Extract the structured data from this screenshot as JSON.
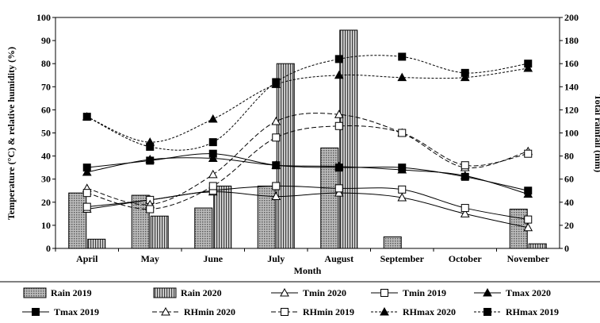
{
  "chart_data": {
    "type": "bar+line",
    "xlabel": "Month",
    "ylabel_left": "Temperature (°C) & relative humidity (%)",
    "ylabel_right": "Total rainfall (mm)",
    "ylim_left": [
      0,
      100
    ],
    "ylim_right": [
      0,
      200
    ],
    "yticks_left": [
      0,
      10,
      20,
      30,
      40,
      50,
      60,
      70,
      80,
      90,
      100
    ],
    "yticks_right": [
      0,
      20,
      40,
      60,
      80,
      100,
      120,
      140,
      160,
      180,
      200
    ],
    "categories": [
      "April",
      "May",
      "June",
      "July",
      "August",
      "September",
      "October",
      "November"
    ],
    "bars": [
      {
        "name": "Rain 2019",
        "axis": "right",
        "pattern": "dots",
        "values": [
          48,
          46,
          35,
          54,
          87,
          10,
          0,
          34
        ]
      },
      {
        "name": "Rain 2020",
        "axis": "right",
        "pattern": "vlines",
        "values": [
          8,
          28,
          54,
          160,
          189,
          0,
          0,
          4
        ]
      }
    ],
    "lines": [
      {
        "name": "Tmin 2020",
        "axis": "left",
        "dash": "solid",
        "marker": "triangle-open",
        "values": [
          17,
          21,
          24.5,
          22.5,
          24,
          22,
          15,
          9
        ]
      },
      {
        "name": "Tmin 2019",
        "axis": "left",
        "dash": "solid",
        "marker": "square-open",
        "values": [
          18,
          21,
          25,
          27,
          26,
          25.5,
          17.5,
          12.5
        ]
      },
      {
        "name": "Tmax 2020",
        "axis": "left",
        "dash": "solid",
        "marker": "triangle-filled",
        "values": [
          33,
          38.5,
          39,
          36,
          35.5,
          34,
          31.5,
          23.5
        ]
      },
      {
        "name": "Tmax 2019",
        "axis": "left",
        "dash": "solid",
        "marker": "square-filled",
        "values": [
          35,
          38,
          41,
          36,
          35,
          35,
          31,
          25
        ]
      },
      {
        "name": "RHmin 2020",
        "axis": "left",
        "dash": "longdash",
        "marker": "triangle-open",
        "values": [
          26,
          19,
          32,
          55,
          58,
          50,
          35,
          42
        ]
      },
      {
        "name": "RHmin 2019",
        "axis": "left",
        "dash": "longdash",
        "marker": "square-open",
        "values": [
          24,
          17,
          27,
          48,
          53,
          50,
          36,
          41
        ]
      },
      {
        "name": "RHmax 2020",
        "axis": "left",
        "dash": "shortdash",
        "marker": "triangle-filled",
        "values": [
          57,
          46,
          56,
          71,
          75,
          74,
          74,
          78
        ]
      },
      {
        "name": "RHmax 2019",
        "axis": "left",
        "dash": "shortdash",
        "marker": "square-filled",
        "values": [
          57,
          44,
          46,
          72,
          82,
          83,
          76,
          80
        ]
      }
    ]
  }
}
